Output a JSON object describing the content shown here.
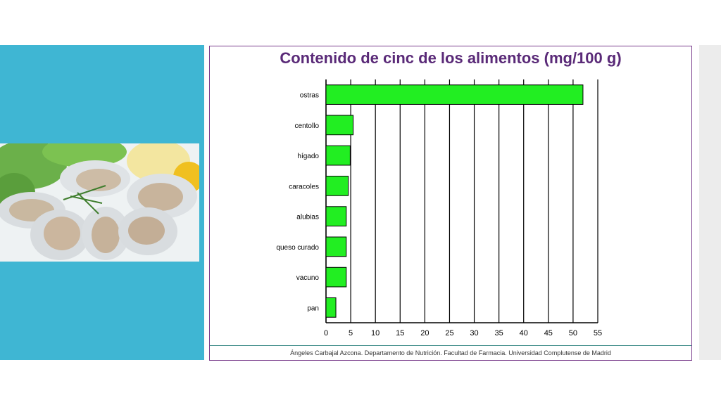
{
  "slide": {
    "credit": "Ángeles Carbajal Azcona. Departamento de Nutrición. Facultad de Farmacia. Universidad Complutense de Madrid"
  },
  "colors": {
    "panel": "#3fb6d3",
    "bar": "#22ee22",
    "title": "#5a2a78",
    "frame": "#7a3d8c"
  },
  "chart_data": {
    "type": "bar",
    "orientation": "horizontal",
    "title": "Contenido de cinc de los alimentos (mg/100 g)",
    "xlabel": "",
    "ylabel": "",
    "categories": [
      "ostras",
      "centollo",
      "hígado",
      "caracoles",
      "alubias",
      "queso curado",
      "vacuno",
      "pan"
    ],
    "values": [
      52,
      5.5,
      4.9,
      4.5,
      4.1,
      4.1,
      4.1,
      2.0
    ],
    "xlim": [
      0,
      55
    ],
    "xticks": [
      0,
      5,
      10,
      15,
      20,
      25,
      30,
      35,
      40,
      45,
      50,
      55
    ],
    "grid": "vertical",
    "legend": "none"
  }
}
